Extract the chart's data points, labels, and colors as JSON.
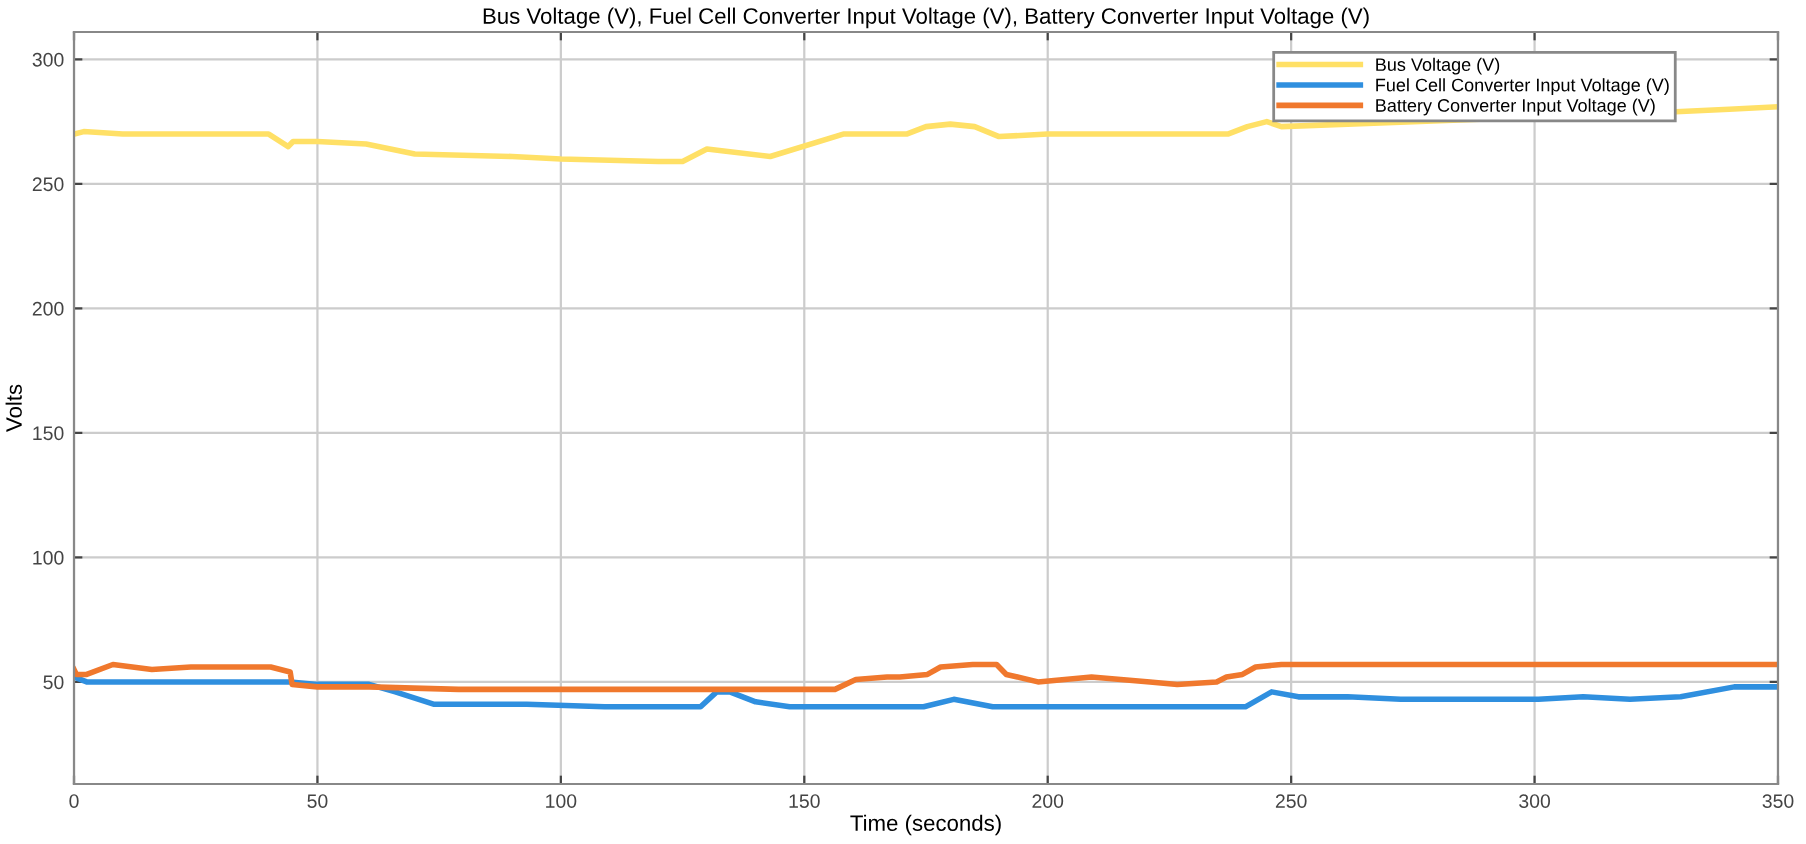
{
  "chart_data": {
    "type": "line",
    "title": "Bus Voltage (V), Fuel Cell Converter Input Voltage (V), Battery Converter Input Voltage (V)",
    "xlabel": "Time (seconds)",
    "ylabel": "Volts",
    "xlim": [
      0,
      350
    ],
    "xticks": [
      0,
      50,
      100,
      150,
      200,
      250,
      300,
      350
    ],
    "ylim": [
      9,
      311
    ],
    "yticks": [
      50,
      100,
      150,
      200,
      250,
      300
    ],
    "grid": true,
    "legend": "top right",
    "line_style": "solid",
    "marker": "none",
    "series": [
      {
        "name": "Bus Voltage (V)",
        "color": "#ffe066",
        "x": [
          0,
          2,
          10,
          40,
          44,
          45,
          50,
          60,
          70,
          90,
          100,
          120,
          125,
          130,
          143,
          158,
          167,
          171,
          175,
          180,
          185,
          190,
          200,
          237,
          241,
          245,
          248,
          329,
          340,
          350
        ],
        "values": [
          270,
          271,
          270,
          270,
          265,
          267,
          267,
          266,
          262,
          261,
          260,
          259,
          259,
          264,
          261,
          270,
          270,
          270,
          273,
          274,
          273,
          269,
          270,
          270,
          273,
          275,
          273,
          279,
          280,
          281
        ]
      },
      {
        "name": "Fuel Cell Converter Input Voltage (V)",
        "color": "#2f8fdf",
        "x": [
          0,
          2.6,
          44.4,
          50,
          60.6,
          66,
          74,
          93,
          109,
          128.7,
          132,
          134.7,
          140,
          147,
          174.5,
          180.7,
          188.7,
          238.7,
          240.6,
          246,
          251.5,
          261.6,
          272.5,
          300.8,
          310,
          319.6,
          330,
          341,
          350
        ],
        "values": [
          52,
          50,
          50,
          49,
          49,
          46,
          41,
          41,
          40,
          40,
          46,
          46,
          42,
          40,
          40,
          43,
          40,
          40,
          40,
          46,
          44,
          44,
          43,
          43,
          44,
          43,
          44,
          48,
          48
        ]
      },
      {
        "name": "Battery Converter Input Voltage (V)",
        "color": "#f0782d",
        "x": [
          0,
          0.5,
          2.6,
          8,
          16,
          24,
          30.8,
          36.3,
          40.4,
          44.4,
          44.8,
          50,
          60.6,
          79,
          156.3,
          160.6,
          167,
          169.6,
          175.3,
          178,
          184.6,
          189.5,
          191.5,
          198,
          209,
          221,
          226.6,
          234.7,
          236.7,
          240,
          242.7,
          248,
          350
        ],
        "values": [
          55,
          53,
          53,
          57,
          55,
          56,
          56,
          56,
          56,
          54,
          49,
          48,
          48,
          47,
          47,
          51,
          52,
          52,
          53,
          56,
          57,
          57,
          53,
          50,
          52,
          50,
          49,
          50,
          52,
          53,
          56,
          57,
          57
        ]
      }
    ]
  }
}
